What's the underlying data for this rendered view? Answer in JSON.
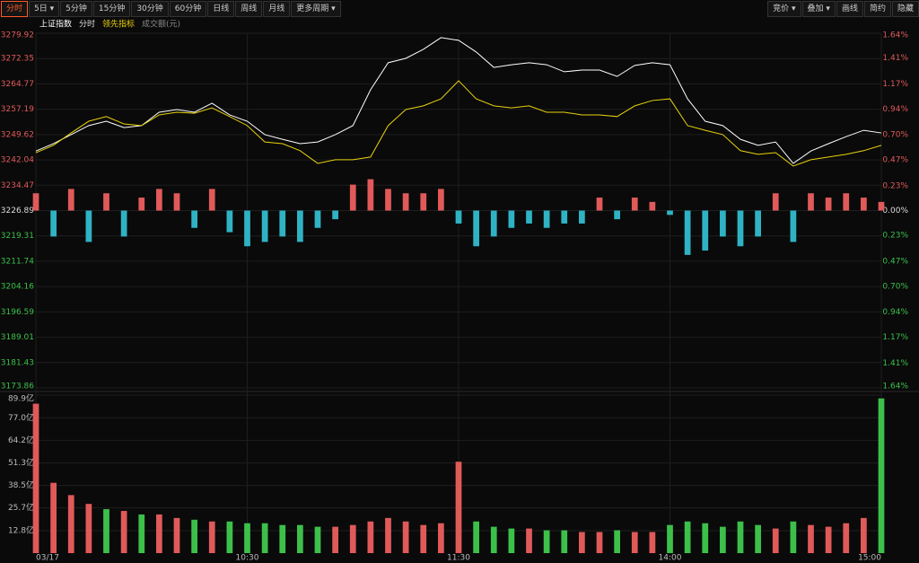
{
  "toolbar": {
    "left": [
      "分时",
      "5日",
      "5分钟",
      "15分钟",
      "30分钟",
      "60分钟",
      "日线",
      "周线",
      "月线",
      "更多周期"
    ],
    "right": [
      "竞价",
      "叠加",
      "画线",
      "简约",
      "隐藏"
    ]
  },
  "chart_data": {
    "type": "line",
    "period_label": "分时",
    "volume_label": "成交额(元)",
    "x": [
      0,
      1,
      2,
      3,
      4,
      5,
      6,
      7,
      8,
      9,
      10,
      11,
      12,
      13,
      14,
      15,
      16,
      17,
      18,
      19,
      20,
      21,
      22,
      23,
      24,
      25,
      26,
      27,
      28,
      29,
      30,
      31,
      32,
      33,
      34,
      35,
      36,
      37,
      38,
      39,
      40,
      41,
      42,
      43,
      44,
      45,
      46,
      47,
      48
    ],
    "xlim": [
      0,
      48
    ],
    "xticks": [
      {
        "value": 0,
        "label": "03/17"
      },
      {
        "value": 12,
        "label": "10:30"
      },
      {
        "value": 24,
        "label": "11:30"
      },
      {
        "value": 36,
        "label": "14:00"
      },
      {
        "value": 48,
        "label": "15:00"
      }
    ],
    "ylim": [
      3173.86,
      3279.92
    ],
    "yticks": [
      3279.92,
      3272.35,
      3264.77,
      3257.19,
      3249.62,
      3242.04,
      3234.47,
      3226.89,
      3219.31,
      3211.74,
      3204.16,
      3196.59,
      3189.01,
      3181.43,
      3173.86
    ],
    "y2lim": [
      -1.64,
      1.64
    ],
    "y2ticks": [
      {
        "value": 1.64,
        "label": "1.64%"
      },
      {
        "value": 1.41,
        "label": "1.41%"
      },
      {
        "value": 1.17,
        "label": "1.17%"
      },
      {
        "value": 0.94,
        "label": "0.94%"
      },
      {
        "value": 0.7,
        "label": "0.70%"
      },
      {
        "value": 0.47,
        "label": "0.47%"
      },
      {
        "value": 0.23,
        "label": "0.23%"
      },
      {
        "value": 0,
        "label": "0.00%"
      },
      {
        "value": -0.23,
        "label": "0.23%"
      },
      {
        "value": -0.47,
        "label": "0.47%"
      },
      {
        "value": -0.7,
        "label": "0.70%"
      },
      {
        "value": -0.94,
        "label": "0.94%"
      },
      {
        "value": -1.17,
        "label": "1.17%"
      },
      {
        "value": -1.41,
        "label": "1.41%"
      },
      {
        "value": -1.64,
        "label": "1.64%"
      }
    ],
    "grid": true,
    "series": [
      {
        "name": "上证指数",
        "color": "#ffffff",
        "values": [
          3244.7,
          3246.9,
          3249.6,
          3252.3,
          3253.6,
          3251.7,
          3252.3,
          3256.3,
          3257.1,
          3256.3,
          3259.0,
          3255.5,
          3253.6,
          3249.6,
          3248.2,
          3246.9,
          3247.4,
          3249.6,
          3252.3,
          3263.0,
          3271.1,
          3272.4,
          3275.1,
          3278.6,
          3277.8,
          3274.3,
          3269.7,
          3270.5,
          3271.1,
          3270.5,
          3268.4,
          3268.9,
          3268.9,
          3267.0,
          3270.3,
          3271.1,
          3270.5,
          3260.3,
          3253.6,
          3252.3,
          3248.2,
          3246.4,
          3247.4,
          3241.0,
          3244.7,
          3246.9,
          3249.0,
          3250.9,
          3250.1
        ]
      },
      {
        "name": "领先指标",
        "color": "#e8d20c",
        "values": [
          3244.2,
          3246.4,
          3250.1,
          3253.6,
          3255.0,
          3252.8,
          3252.3,
          3255.5,
          3256.3,
          3256.0,
          3257.6,
          3255.0,
          3252.3,
          3247.4,
          3246.9,
          3244.8,
          3241.0,
          3242.1,
          3242.1,
          3242.9,
          3252.3,
          3257.1,
          3258.2,
          3260.3,
          3265.7,
          3260.3,
          3258.2,
          3257.6,
          3258.2,
          3256.3,
          3256.3,
          3255.5,
          3255.5,
          3255.0,
          3258.2,
          3259.8,
          3260.3,
          3252.3,
          3250.9,
          3249.6,
          3244.8,
          3243.7,
          3244.2,
          3240.2,
          3242.1,
          3242.9,
          3243.7,
          3244.8,
          3246.4
        ]
      }
    ],
    "breadth": {
      "axis": "y2",
      "up_color": "#e05a5a",
      "down_color": "#2fb3c4",
      "values": [
        0.16,
        -0.24,
        0.2,
        -0.29,
        0.16,
        -0.24,
        0.12,
        0.2,
        0.16,
        -0.16,
        0.2,
        -0.2,
        -0.33,
        -0.29,
        -0.24,
        -0.29,
        -0.16,
        -0.08,
        0.24,
        0.29,
        0.2,
        0.16,
        0.16,
        0.2,
        -0.12,
        -0.33,
        -0.24,
        -0.16,
        -0.12,
        -0.16,
        -0.12,
        -0.12,
        0.12,
        -0.08,
        0.12,
        0.08,
        -0.04,
        -0.41,
        -0.37,
        -0.24,
        -0.33,
        -0.24,
        0.16,
        -0.29,
        0.16,
        0.12,
        0.16,
        0.12,
        0.08
      ]
    },
    "volume": {
      "ylim": [
        0,
        89.9
      ],
      "yticks": [
        {
          "value": 89.9,
          "label": "89.9亿"
        },
        {
          "value": 77.0,
          "label": "77.0亿"
        },
        {
          "value": 64.2,
          "label": "64.2亿"
        },
        {
          "value": 51.3,
          "label": "51.3亿"
        },
        {
          "value": 38.5,
          "label": "38.5亿"
        },
        {
          "value": 25.7,
          "label": "25.7亿"
        },
        {
          "value": 12.8,
          "label": "12.8亿"
        }
      ],
      "values": [
        85,
        40,
        33,
        28,
        25,
        24,
        22,
        22,
        20,
        19,
        18,
        18,
        17,
        17,
        16,
        16,
        15,
        15,
        16,
        18,
        20,
        18,
        16,
        17,
        52,
        18,
        15,
        14,
        14,
        13,
        13,
        12,
        12,
        13,
        12,
        12,
        16,
        18,
        17,
        15,
        18,
        16,
        14,
        18,
        16,
        15,
        17,
        20,
        88
      ],
      "colors": [
        "#e05a5a",
        "#e05a5a",
        "#e05a5a",
        "#e05a5a",
        "#3cc04a",
        "#e05a5a",
        "#3cc04a",
        "#e05a5a",
        "#e05a5a",
        "#3cc04a",
        "#e05a5a",
        "#3cc04a",
        "#3cc04a",
        "#3cc04a",
        "#3cc04a",
        "#3cc04a",
        "#3cc04a",
        "#e05a5a",
        "#e05a5a",
        "#e05a5a",
        "#e05a5a",
        "#e05a5a",
        "#e05a5a",
        "#e05a5a",
        "#e05a5a",
        "#3cc04a",
        "#3cc04a",
        "#3cc04a",
        "#e05a5a",
        "#3cc04a",
        "#3cc04a",
        "#e05a5a",
        "#e05a5a",
        "#3cc04a",
        "#e05a5a",
        "#e05a5a",
        "#3cc04a",
        "#3cc04a",
        "#3cc04a",
        "#3cc04a",
        "#3cc04a",
        "#3cc04a",
        "#e05a5a",
        "#3cc04a",
        "#e05a5a",
        "#e05a5a",
        "#e05a5a",
        "#e05a5a",
        "#3cc04a"
      ]
    }
  }
}
